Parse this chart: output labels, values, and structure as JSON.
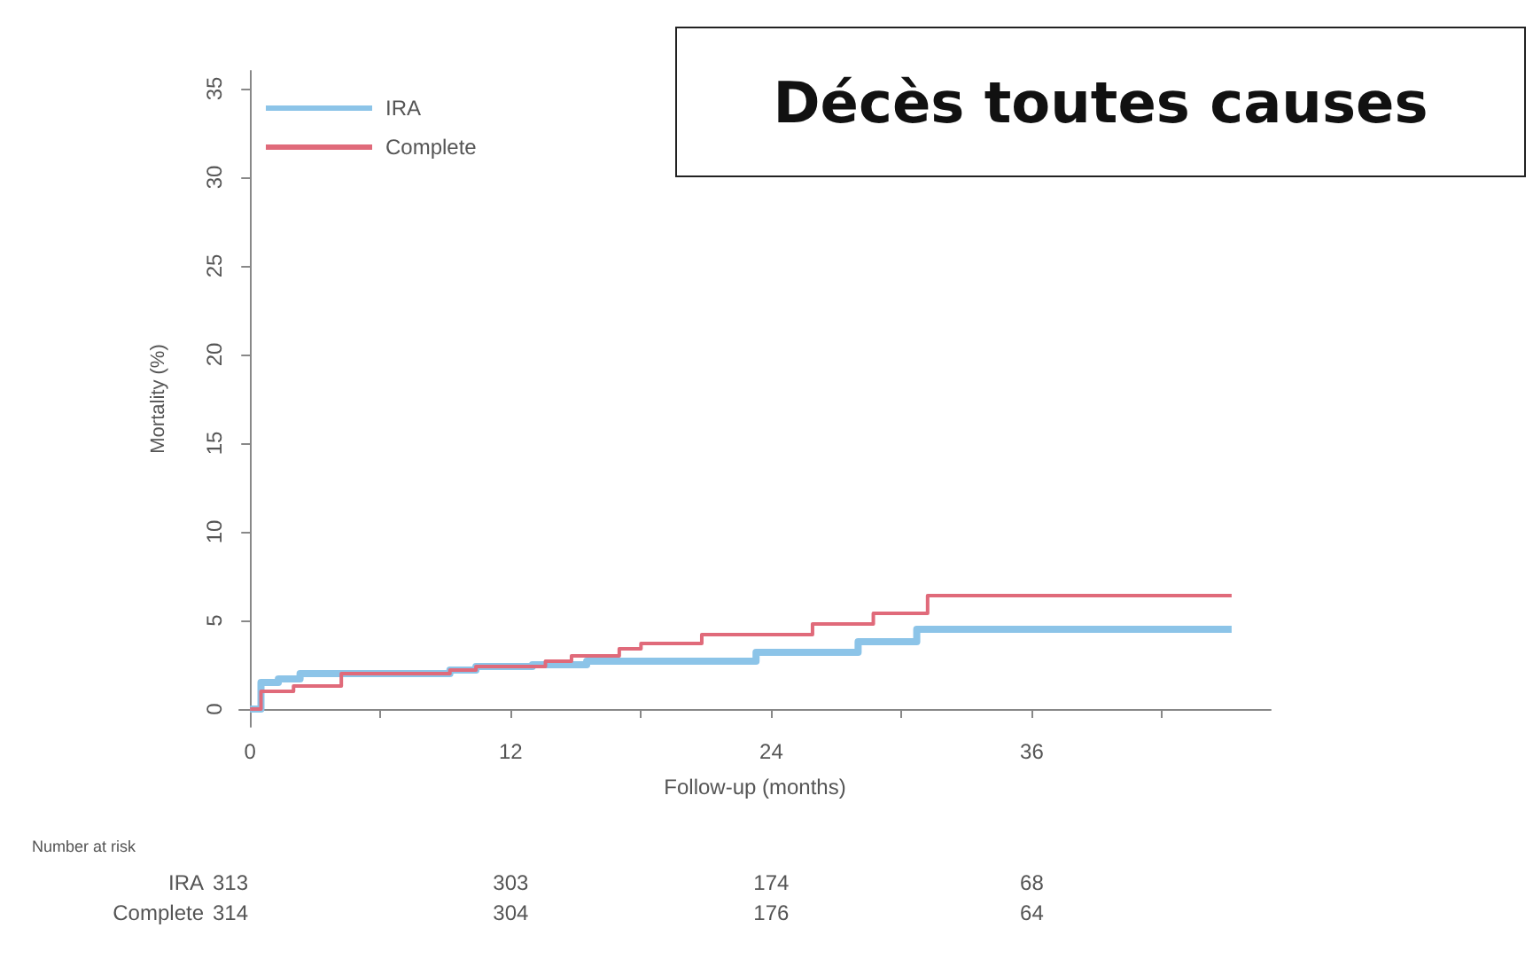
{
  "chart_data": {
    "type": "step",
    "title": "Décès toutes causes",
    "xlabel": "Follow-up (months)",
    "ylabel": "Mortality (%)",
    "xlim": [
      -0.5,
      47
    ],
    "xticks": [
      0,
      {
        "value": 6,
        "label": null
      },
      12,
      {
        "value": 18,
        "label": null
      },
      24,
      {
        "value": 30,
        "label": null
      },
      36,
      {
        "value": 42,
        "label": null
      }
    ],
    "ylim": [
      -1,
      36
    ],
    "yticks": [
      0,
      5,
      10,
      15,
      20,
      25,
      30,
      35
    ],
    "series": [
      {
        "name": "IRA",
        "color": "#8cc4e8",
        "x": [
          0,
          0.5,
          1.3,
          2.3,
          9.2,
          10.4,
          13,
          15.5,
          23.3,
          28,
          30.7,
          45.2
        ],
        "values": [
          0,
          1.5,
          1.7,
          2.0,
          2.2,
          2.4,
          2.5,
          2.7,
          3.2,
          3.8,
          4.5,
          4.5
        ]
      },
      {
        "name": "Complete",
        "color": "#e06a7a",
        "x": [
          0,
          0.5,
          2,
          4.2,
          9.2,
          10.4,
          13.6,
          14.8,
          17,
          18,
          20.8,
          25.9,
          28.7,
          31.2,
          45.2
        ],
        "values": [
          0,
          1.0,
          1.3,
          2.0,
          2.2,
          2.4,
          2.7,
          3.0,
          3.4,
          3.7,
          4.2,
          4.8,
          5.4,
          6.4,
          6.4
        ]
      }
    ],
    "legend": "top left",
    "grid": false,
    "marker": "none",
    "line_style": "solid",
    "annotations": [
      "Number at risk",
      "IRA",
      "313",
      "303",
      "174",
      "68",
      "Complete",
      "314",
      "304",
      "176",
      "64"
    ]
  }
}
